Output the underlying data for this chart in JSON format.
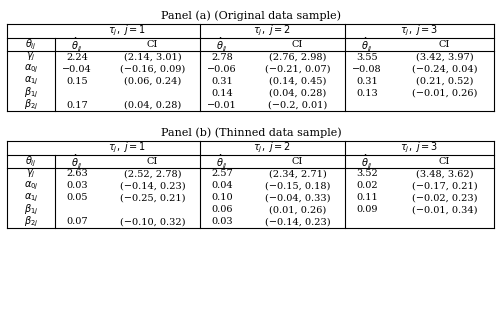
{
  "panel_a_title": "Panel (a) (Original data sample)",
  "panel_b_title": "Panel (b) (Thinned data sample)",
  "panel_a_data": [
    [
      "2.24",
      "(2.14, 3.01)",
      "2.78",
      "(2.76, 2.98)",
      "3.55",
      "(3.42, 3.97)"
    ],
    [
      "−0.04",
      "(−0.16, 0.09)",
      "−0.06",
      "(−0.21, 0.07)",
      "−0.08",
      "(−0.24, 0.04)"
    ],
    [
      "0.15",
      "(0.06, 0.24)",
      "0.31",
      "(0.14, 0.45)",
      "0.31",
      "(0.21, 0.52)"
    ],
    [
      "",
      "",
      "0.14",
      "(0.04, 0.28)",
      "0.13",
      "(−0.01, 0.26)"
    ],
    [
      "0.17",
      "(0.04, 0.28)",
      "−0.01",
      "(−0.2, 0.01)",
      "",
      ""
    ]
  ],
  "panel_b_data": [
    [
      "2.63",
      "(2.52, 2.78)",
      "2.57",
      "(2.34, 2.71)",
      "3.52",
      "(3.48, 3.62)"
    ],
    [
      "0.03",
      "(−0.14, 0.23)",
      "0.04",
      "(−0.15, 0.18)",
      "0.02",
      "(−0.17, 0.21)"
    ],
    [
      "0.05",
      "(−0.25, 0.21)",
      "0.10",
      "(−0.04, 0.33)",
      "0.11",
      "(−0.02, 0.23)"
    ],
    [
      "",
      "",
      "0.06",
      "(0.01, 0.26)",
      "0.09",
      "(−0.01, 0.34)"
    ],
    [
      "0.07",
      "(−0.10, 0.32)",
      "0.03",
      "(−0.14, 0.23)",
      "",
      ""
    ]
  ],
  "bg_color": "#ffffff",
  "text_color": "#000000",
  "line_color": "#000000",
  "font_size": 7.0,
  "title_font_size": 8.0
}
